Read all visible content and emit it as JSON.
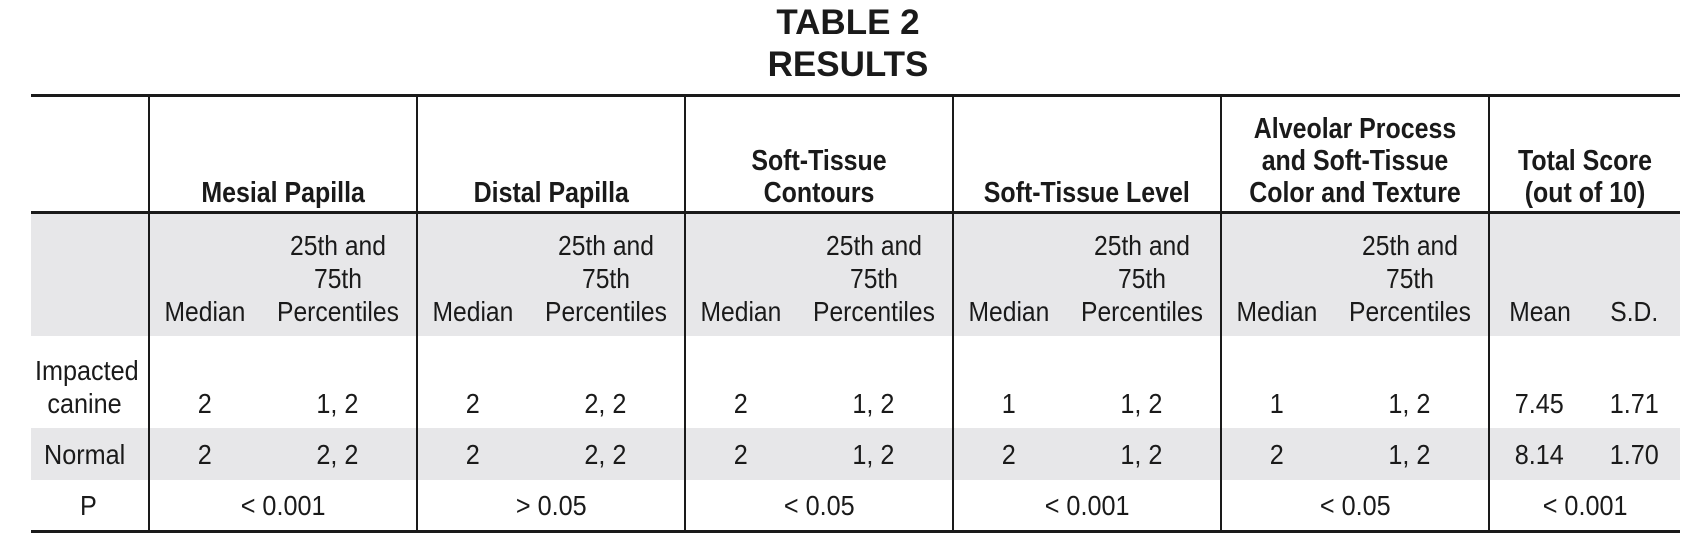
{
  "title": {
    "line1": "TABLE 2",
    "line2": "RESULTS"
  },
  "table": {
    "groups": [
      "Mesial Papilla",
      "Distal Papilla",
      "Soft-Tissue Contours",
      "Soft-Tissue Level",
      "Alveolar Process and Soft-Tissue Color and Texture",
      "Total Score (out of 10)"
    ],
    "subheaders": {
      "median": "Median",
      "percentiles": "25th and 75th Percentiles",
      "mean": "Mean",
      "sd": "S.D."
    },
    "rows": [
      {
        "label": "Impacted canine",
        "cells": [
          "2",
          "1, 2",
          "2",
          "2, 2",
          "2",
          "1, 2",
          "1",
          "1, 2",
          "1",
          "1, 2",
          "7.45",
          "1.71"
        ]
      },
      {
        "label": "Normal",
        "cells": [
          "2",
          "2, 2",
          "2",
          "2, 2",
          "2",
          "1, 2",
          "2",
          "1, 2",
          "2",
          "1, 2",
          "8.14",
          "1.70"
        ]
      }
    ],
    "p_row": {
      "label": "P",
      "values": [
        "< 0.001",
        "> 0.05",
        "< 0.05",
        "< 0.001",
        "< 0.05",
        "< 0.001"
      ]
    }
  }
}
